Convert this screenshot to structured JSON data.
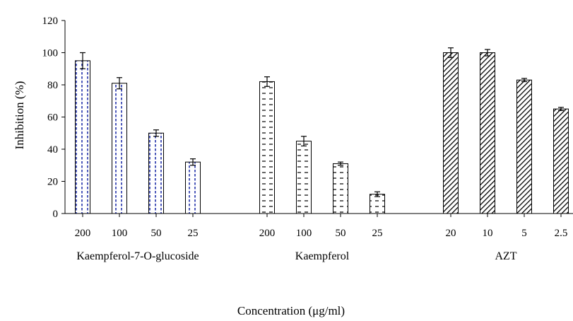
{
  "chart_data": {
    "type": "bar",
    "ylabel": "Inhibition  (%)",
    "xlabel": "Concentration (μg/ml)",
    "ylim": [
      0,
      120
    ],
    "yticks": [
      0,
      20,
      40,
      60,
      80,
      100,
      120
    ],
    "grid": false,
    "legend": "none",
    "groups": [
      {
        "name": "Kaempferol-7-O-glucoside",
        "pattern": "blue-dotted-vertical",
        "categories": [
          "200",
          "100",
          "50",
          "25"
        ],
        "values": [
          95,
          81,
          50,
          32
        ],
        "errors": [
          5,
          3.5,
          2,
          2
        ]
      },
      {
        "name": "Kaempferol",
        "pattern": "horizontal-dashes",
        "categories": [
          "200",
          "100",
          "50",
          "25"
        ],
        "values": [
          82,
          45,
          31,
          12
        ],
        "errors": [
          3,
          3,
          1,
          1.5
        ]
      },
      {
        "name": "AZT",
        "pattern": "diagonal-hatch",
        "categories": [
          "20",
          "10",
          "5",
          "2.5"
        ],
        "values": [
          100,
          100,
          83,
          65
        ],
        "errors": [
          3,
          2,
          1,
          1
        ]
      }
    ]
  }
}
